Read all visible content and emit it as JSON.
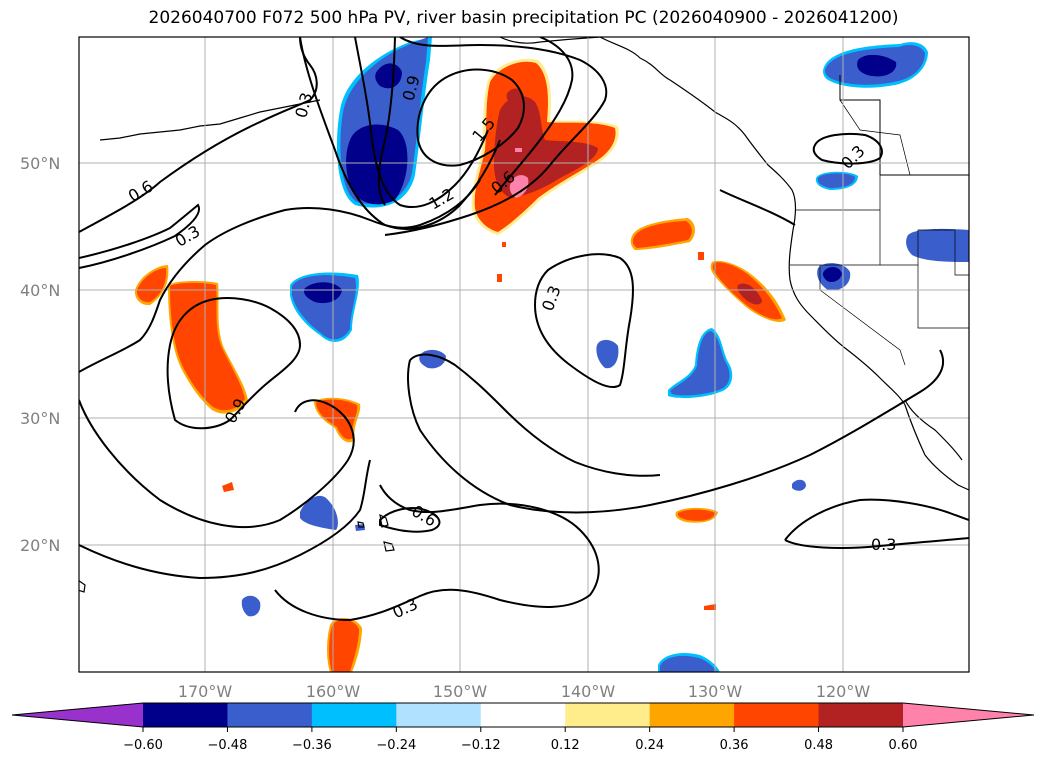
{
  "title": "2026040700 F072 500 hPa PV, river basin precipitation PC (2026040900 - 2026041200)",
  "lat_labels": [
    "50°N",
    "40°N",
    "30°N",
    "20°N"
  ],
  "lon_labels": [
    "170°W",
    "160°W",
    "150°W",
    "140°W",
    "130°W",
    "120°W"
  ],
  "contour_labels": [
    "0.6",
    "0.3",
    "0.9",
    "0.3",
    "0.9",
    "1.2",
    "1.5",
    "0.6",
    "0.3",
    "0.3",
    "0.6",
    "0.3",
    "0.3"
  ],
  "colorbar": {
    "ticks": [
      "−0.60",
      "−0.48",
      "−0.36",
      "−0.24",
      "−0.12",
      "0.12",
      "0.24",
      "0.36",
      "0.48",
      "0.60"
    ],
    "colors": [
      "#9932cc",
      "#00008b",
      "#3a5fcd",
      "#00bfff",
      "#b0e2ff",
      "#ffffff",
      "#ffec8b",
      "#ffa500",
      "#ff4500",
      "#b22222",
      "#ff82ab"
    ]
  },
  "colors": {
    "neg_dark": "#00008b",
    "neg_mid": "#3a5fcd",
    "neg_light": "#00bfff",
    "pos_yellow": "#ffec8b",
    "pos_orange": "#ffa500",
    "pos_red": "#ff4500",
    "pos_darkred": "#b22222",
    "pos_pink": "#ff82ab",
    "grid": "#b0b0b0",
    "axis_label": "#808080"
  }
}
